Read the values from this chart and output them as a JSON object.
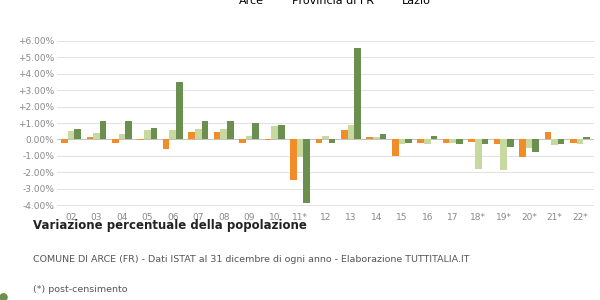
{
  "categories": [
    "02",
    "03",
    "04",
    "05",
    "06",
    "07",
    "08",
    "09",
    "10",
    "11*",
    "12",
    "13",
    "14",
    "15",
    "16",
    "17",
    "18*",
    "19*",
    "20*",
    "21*",
    "22*"
  ],
  "arce": [
    -0.2,
    0.15,
    -0.2,
    -0.05,
    -0.6,
    0.45,
    0.45,
    -0.2,
    -0.05,
    -2.5,
    -0.2,
    0.55,
    0.15,
    -1.0,
    -0.2,
    -0.2,
    -0.15,
    -0.3,
    -1.1,
    0.45,
    -0.2
  ],
  "provincia_fr": [
    0.5,
    0.4,
    0.3,
    0.55,
    0.6,
    0.65,
    0.65,
    0.2,
    0.8,
    -1.1,
    0.2,
    0.85,
    0.15,
    -0.3,
    -0.25,
    -0.2,
    -1.8,
    -1.85,
    -0.55,
    -0.35,
    -0.25
  ],
  "lazio": [
    0.65,
    1.1,
    1.1,
    0.7,
    3.5,
    1.15,
    1.15,
    1.0,
    0.85,
    -3.9,
    -0.2,
    5.55,
    0.35,
    -0.2,
    0.2,
    -0.25,
    -0.3,
    -0.45,
    -0.75,
    -0.25,
    0.15
  ],
  "color_arce": "#f28c28",
  "color_provincia": "#c8d9a0",
  "color_lazio": "#6b8f4e",
  "title_bold": "Variazione percentuale della popolazione",
  "subtitle": "COMUNE DI ARCE (FR) - Dati ISTAT al 31 dicembre di ogni anno - Elaborazione TUTTITALIA.IT",
  "footnote": "(*) post-censimento",
  "ylim": [
    -4.3,
    6.3
  ],
  "yticks": [
    -4.0,
    -3.0,
    -2.0,
    -1.0,
    0.0,
    1.0,
    2.0,
    3.0,
    4.0,
    5.0,
    6.0
  ],
  "bg_color": "#ffffff"
}
